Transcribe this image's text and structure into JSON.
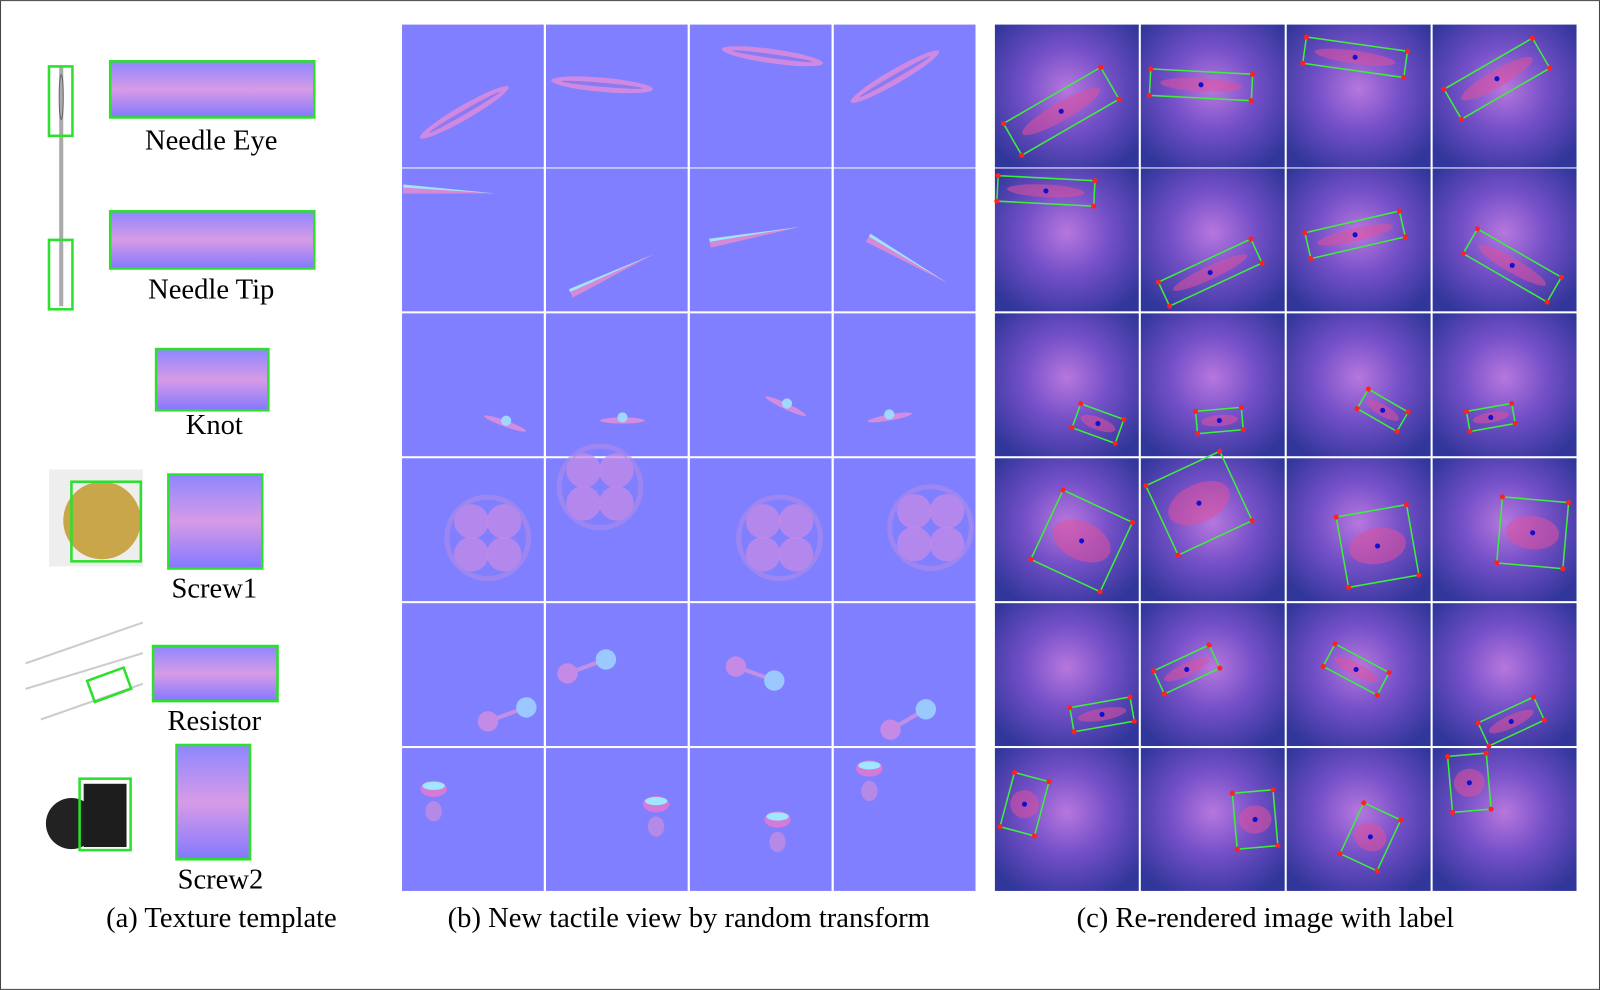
{
  "labels": [
    "Needle Eye",
    "Needle Tip",
    "Knot",
    "Screw1",
    "Resistor",
    "Screw2"
  ],
  "captions": {
    "a": "(a) Texture template",
    "b": "(b) New tactile view by random transform",
    "c": "(c) Re-rendered image with label"
  }
}
